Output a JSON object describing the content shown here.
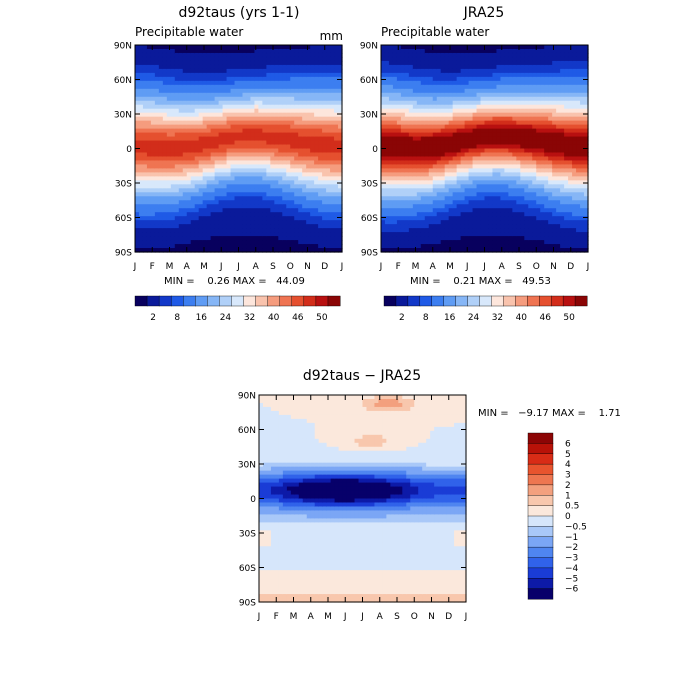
{
  "colors": {
    "positive_scale": [
      "#08005e",
      "#0a1a9a",
      "#1238c8",
      "#1f5ae6",
      "#3c7ef0",
      "#5f9cf4",
      "#86b6f6",
      "#b0d0f8",
      "#d8e8fb",
      "#fde6dc",
      "#f9c3ad",
      "#f59c7e",
      "#ef7452",
      "#e5502f",
      "#d22d1a",
      "#b81010",
      "#8a0505"
    ],
    "diff_scale": [
      "#07006a",
      "#0d1aa8",
      "#1a3cd6",
      "#3062ea",
      "#4f85f0",
      "#7ba6f5",
      "#a9c8f8",
      "#d6e6fb",
      "#fbe8dc",
      "#f8c7ad",
      "#f3a07e",
      "#ee7650",
      "#e8542e",
      "#d82c16",
      "#b81208",
      "#8c0505"
    ]
  },
  "chart_data": [
    {
      "type": "heatmap",
      "title": "d92taus (yrs 1-1)",
      "subtitle": "Precipitable water",
      "units": "mm",
      "x_tick_labels": [
        "J",
        "F",
        "M",
        "A",
        "M",
        "J",
        "J",
        "A",
        "S",
        "O",
        "N",
        "D",
        "J"
      ],
      "y_tick_labels": [
        "90N",
        "60N",
        "30N",
        "0",
        "30S",
        "60S",
        "90S"
      ],
      "ylim": [
        -90,
        90
      ],
      "stats": "MIN =    0.26 MAX =   44.09",
      "min": 0.26,
      "max": 44.09,
      "peak_lat_by_month": [
        2,
        1,
        0,
        1,
        4,
        8,
        11,
        12,
        10,
        8,
        5,
        3,
        2
      ],
      "colorbar_labels": [
        "2",
        "8",
        "16",
        "24",
        "32",
        "40",
        "46",
        "50"
      ]
    },
    {
      "type": "heatmap",
      "title": "JRA25",
      "subtitle": "Precipitable water",
      "units": "",
      "x_tick_labels": [
        "J",
        "F",
        "M",
        "A",
        "M",
        "J",
        "J",
        "A",
        "S",
        "O",
        "N",
        "D",
        "J"
      ],
      "y_tick_labels": [
        "90N",
        "60N",
        "30N",
        "0",
        "30S",
        "60S",
        "90S"
      ],
      "ylim": [
        -90,
        90
      ],
      "stats": "MIN =    0.21 MAX =   49.53",
      "min": 0.21,
      "max": 49.53,
      "peak_lat_by_month": [
        2,
        1,
        0,
        1,
        4,
        8,
        11,
        12,
        10,
        8,
        5,
        3,
        2
      ],
      "colorbar_labels": [
        "2",
        "8",
        "16",
        "24",
        "32",
        "40",
        "46",
        "50"
      ]
    },
    {
      "type": "heatmap",
      "title": "d92taus − JRA25",
      "subtitle": "",
      "units": "",
      "x_tick_labels": [
        "J",
        "F",
        "M",
        "A",
        "M",
        "J",
        "J",
        "A",
        "S",
        "O",
        "N",
        "D",
        "J"
      ],
      "y_tick_labels": [
        "90N",
        "60N",
        "30N",
        "0",
        "30S",
        "60S",
        "90S"
      ],
      "ylim": [
        -90,
        90
      ],
      "stats": "MIN =   −9.17 MAX =    1.71",
      "min": -9.17,
      "max": 1.71,
      "colorbar_labels": [
        "6",
        "5",
        "4",
        "3",
        "2",
        "1",
        "0.5",
        "0",
        "−0.5",
        "−1",
        "−2",
        "−3",
        "−4",
        "−5",
        "−6"
      ]
    }
  ]
}
